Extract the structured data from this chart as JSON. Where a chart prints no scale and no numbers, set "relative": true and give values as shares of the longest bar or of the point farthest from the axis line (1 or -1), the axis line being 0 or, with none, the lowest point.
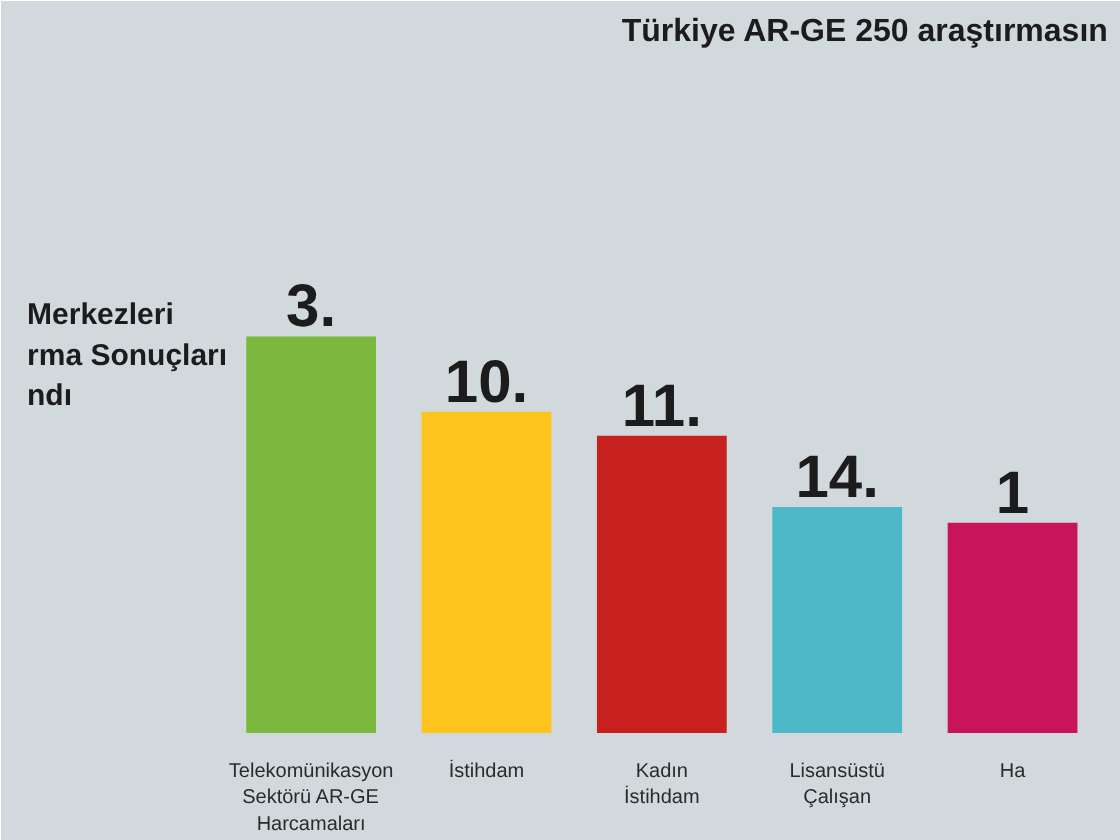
{
  "chart_data": {
    "type": "bar",
    "title": "Türkiye AR-GE 250 araştırmasın",
    "annotations": [
      "Merkezleri",
      "rma Sonuçları",
      "ndı",
      {
        "text": "3.",
        "x": "Telekomünikasyon Sektörü AR-GE Harcamaları",
        "y": 1
      },
      {
        "text": "10.",
        "x": "İstihdam",
        "y": 0.81
      },
      {
        "text": "11.",
        "x": "Kadın İstihdam",
        "y": 0.75
      },
      {
        "text": "14.",
        "x": "Lisansüstü Çalışan",
        "y": 0.57
      },
      {
        "text": "1",
        "x": "Ha",
        "y": 0.53
      }
    ],
    "categories": [
      "Telekomünikasyon Sektörü AR-GE Harcamaları",
      "İstihdam",
      "Kadın İstihdam",
      "Lisansüstü Çalışan",
      "Ha"
    ],
    "values": [
      1,
      0.81,
      0.75,
      0.57,
      0.53
    ],
    "colors": [
      "#7cb83e",
      "#fdc41e",
      "#c8201e",
      "#4db8c8",
      "#c8145a"
    ],
    "relative": true
  }
}
